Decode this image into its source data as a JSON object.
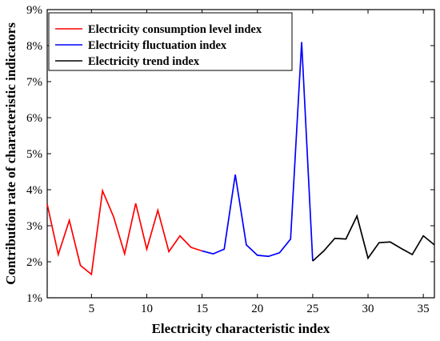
{
  "chart_data": {
    "type": "line",
    "xlabel": "Electricity characteristic index",
    "ylabel": "Contribution rate of characteristic indicators",
    "xlim": [
      1,
      36
    ],
    "ylim": [
      1,
      9
    ],
    "x_ticks": [
      5,
      10,
      15,
      20,
      25,
      30,
      35
    ],
    "y_ticks": [
      "1%",
      "2%",
      "3%",
      "4%",
      "5%",
      "6%",
      "7%",
      "8%",
      "9%"
    ],
    "y_tick_values": [
      1,
      2,
      3,
      4,
      5,
      6,
      7,
      8,
      9
    ],
    "grid": false,
    "legend_position": "top-left",
    "series": [
      {
        "name": "Electricity consumption level index",
        "color": "#ff0000",
        "x": [
          1,
          2,
          3,
          4,
          5,
          6,
          7,
          8,
          9,
          10,
          11,
          12,
          13,
          14,
          15
        ],
        "values": [
          3.6,
          2.2,
          3.15,
          1.9,
          1.65,
          3.97,
          3.25,
          2.22,
          3.62,
          2.35,
          3.43,
          2.28,
          2.72,
          2.4,
          2.3
        ]
      },
      {
        "name": "Electricity fluctuation index",
        "color": "#0000ff",
        "x": [
          15,
          16,
          17,
          18,
          19,
          20,
          21,
          22,
          23,
          24,
          25
        ],
        "values": [
          2.3,
          2.22,
          2.35,
          4.42,
          2.47,
          2.18,
          2.15,
          2.25,
          2.63,
          8.1,
          2.02
        ]
      },
      {
        "name": "Electricity trend index",
        "color": "#000000",
        "x": [
          25,
          26,
          27,
          28,
          29,
          30,
          31,
          32,
          33,
          34,
          35,
          36
        ],
        "values": [
          2.02,
          2.3,
          2.65,
          2.63,
          3.27,
          2.1,
          2.53,
          2.55,
          2.37,
          2.2,
          2.72,
          2.47
        ]
      }
    ]
  }
}
